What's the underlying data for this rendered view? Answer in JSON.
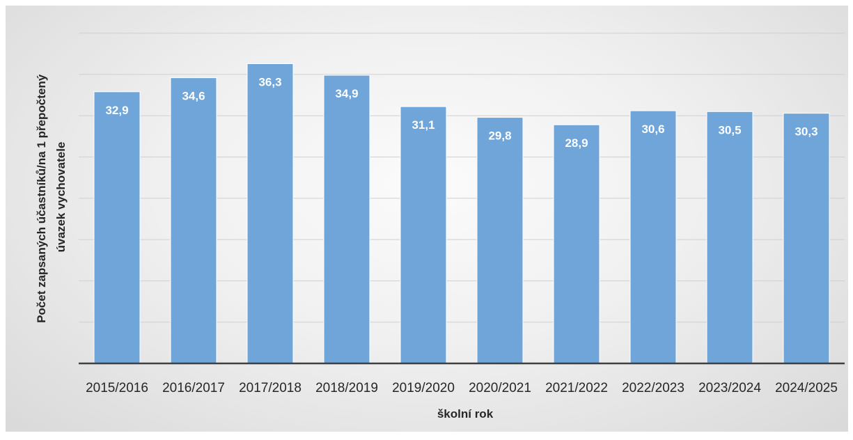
{
  "chart_data": {
    "type": "bar",
    "categories": [
      "2015/2016",
      "2016/2017",
      "2017/2018",
      "2018/2019",
      "2019/2020",
      "2020/2021",
      "2021/2022",
      "2022/2023",
      "2023/2024",
      "2024/2025"
    ],
    "values": [
      32.9,
      34.6,
      36.3,
      34.9,
      31.1,
      29.8,
      28.9,
      30.6,
      30.5,
      30.3
    ],
    "value_labels": [
      "32,9",
      "34,6",
      "36,3",
      "34,9",
      "31,1",
      "29,8",
      "28,9",
      "30,6",
      "30,5",
      "30,3"
    ],
    "title": "",
    "xlabel": "školní rok",
    "ylabel_lines": [
      "Počet zapsaných účastníků/na 1 přepočtený",
      "úvazek vychovatele"
    ],
    "ylim": [
      0,
      40
    ],
    "y_gridlines": [
      5,
      10,
      15,
      20,
      25,
      30,
      35,
      40
    ],
    "grid": true,
    "legend": false,
    "colors": {
      "bar": "#6fa5d9",
      "bar_edge": "#ffffff",
      "grid": "#d0d0d0",
      "axis": "#404040",
      "label_text": "#ffffff"
    }
  }
}
